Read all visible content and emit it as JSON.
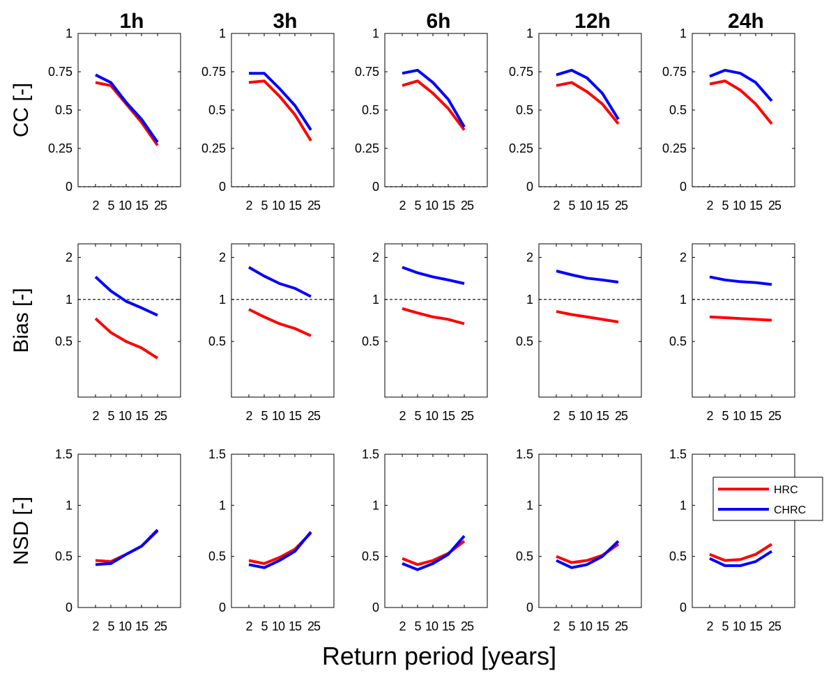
{
  "figure": {
    "xlabel": "Return period [years]",
    "columns": [
      "1h",
      "3h",
      "6h",
      "12h",
      "24h"
    ]
  },
  "legend": {
    "entries": [
      {
        "name": "HRC",
        "color": "#ff0000"
      },
      {
        "name": "CHRC",
        "color": "#0000ff"
      }
    ],
    "placement": "panel NSD 24h, upper right"
  },
  "chart_data": [
    {
      "type": "line",
      "row": "CC",
      "ylabel": "CC [-]",
      "ylim": [
        0,
        1
      ],
      "yticks": [
        0,
        0.25,
        0.5,
        0.75,
        1
      ],
      "ytick_labels": [
        "0",
        "0.25",
        "0.5",
        "0.75",
        "1"
      ],
      "x": [
        2,
        5,
        10,
        15,
        25
      ],
      "xtick_labels": [
        "2",
        "5",
        "10",
        "15",
        "25"
      ],
      "reference_line": 0,
      "panels": [
        {
          "title": "1h",
          "series": [
            {
              "name": "HRC",
              "values": [
                0.68,
                0.66,
                0.54,
                0.42,
                0.27
              ]
            },
            {
              "name": "CHRC",
              "values": [
                0.73,
                0.68,
                0.55,
                0.44,
                0.29
              ]
            }
          ]
        },
        {
          "title": "3h",
          "series": [
            {
              "name": "HRC",
              "values": [
                0.68,
                0.69,
                0.59,
                0.47,
                0.3
              ]
            },
            {
              "name": "CHRC",
              "values": [
                0.74,
                0.74,
                0.64,
                0.53,
                0.37
              ]
            }
          ]
        },
        {
          "title": "6h",
          "series": [
            {
              "name": "HRC",
              "values": [
                0.66,
                0.69,
                0.61,
                0.51,
                0.37
              ]
            },
            {
              "name": "CHRC",
              "values": [
                0.74,
                0.76,
                0.68,
                0.57,
                0.39
              ]
            }
          ]
        },
        {
          "title": "12h",
          "series": [
            {
              "name": "HRC",
              "values": [
                0.66,
                0.68,
                0.62,
                0.54,
                0.41
              ]
            },
            {
              "name": "CHRC",
              "values": [
                0.73,
                0.76,
                0.71,
                0.61,
                0.44
              ]
            }
          ]
        },
        {
          "title": "24h",
          "series": [
            {
              "name": "HRC",
              "values": [
                0.67,
                0.69,
                0.63,
                0.54,
                0.41
              ]
            },
            {
              "name": "CHRC",
              "values": [
                0.72,
                0.76,
                0.74,
                0.68,
                0.56
              ]
            }
          ]
        }
      ]
    },
    {
      "type": "line",
      "row": "Bias",
      "ylabel": "Bias [-]",
      "ylim": [
        0.2,
        2.5
      ],
      "yticks": [
        0.5,
        1,
        2
      ],
      "ytick_labels": [
        "0.5",
        "1",
        "2"
      ],
      "scale": "log",
      "x": [
        2,
        5,
        10,
        15,
        25
      ],
      "xtick_labels": [
        "2",
        "5",
        "10",
        "15",
        "25"
      ],
      "reference_line": 1,
      "panels": [
        {
          "title": "1h",
          "series": [
            {
              "name": "HRC",
              "values": [
                0.73,
                0.58,
                0.5,
                0.45,
                0.38
              ]
            },
            {
              "name": "CHRC",
              "values": [
                1.45,
                1.15,
                0.97,
                0.87,
                0.77
              ]
            }
          ]
        },
        {
          "title": "3h",
          "series": [
            {
              "name": "HRC",
              "values": [
                0.85,
                0.75,
                0.67,
                0.62,
                0.55
              ]
            },
            {
              "name": "CHRC",
              "values": [
                1.7,
                1.47,
                1.3,
                1.2,
                1.05
              ]
            }
          ]
        },
        {
          "title": "6h",
          "series": [
            {
              "name": "HRC",
              "values": [
                0.86,
                0.8,
                0.75,
                0.72,
                0.67
              ]
            },
            {
              "name": "CHRC",
              "values": [
                1.7,
                1.55,
                1.45,
                1.38,
                1.3
              ]
            }
          ]
        },
        {
          "title": "12h",
          "series": [
            {
              "name": "HRC",
              "values": [
                0.82,
                0.78,
                0.75,
                0.72,
                0.69
              ]
            },
            {
              "name": "CHRC",
              "values": [
                1.6,
                1.5,
                1.42,
                1.38,
                1.33
              ]
            }
          ]
        },
        {
          "title": "24h",
          "series": [
            {
              "name": "HRC",
              "values": [
                0.75,
                0.74,
                0.73,
                0.72,
                0.71
              ]
            },
            {
              "name": "CHRC",
              "values": [
                1.45,
                1.38,
                1.34,
                1.32,
                1.28
              ]
            }
          ]
        }
      ]
    },
    {
      "type": "line",
      "row": "NSD",
      "ylabel": "NSD [-]",
      "ylim": [
        0,
        1.5
      ],
      "yticks": [
        0,
        0.5,
        1,
        1.5
      ],
      "ytick_labels": [
        "0",
        "0.5",
        "1",
        "1.5"
      ],
      "x": [
        2,
        5,
        10,
        15,
        25
      ],
      "xtick_labels": [
        "2",
        "5",
        "10",
        "15",
        "25"
      ],
      "reference_line": null,
      "panels": [
        {
          "title": "1h",
          "series": [
            {
              "name": "HRC",
              "values": [
                0.46,
                0.45,
                0.52,
                0.6,
                0.75
              ]
            },
            {
              "name": "CHRC",
              "values": [
                0.42,
                0.43,
                0.52,
                0.6,
                0.76
              ]
            }
          ]
        },
        {
          "title": "3h",
          "series": [
            {
              "name": "HRC",
              "values": [
                0.46,
                0.43,
                0.49,
                0.57,
                0.73
              ]
            },
            {
              "name": "CHRC",
              "values": [
                0.42,
                0.39,
                0.46,
                0.55,
                0.74
              ]
            }
          ]
        },
        {
          "title": "6h",
          "series": [
            {
              "name": "HRC",
              "values": [
                0.48,
                0.42,
                0.46,
                0.53,
                0.65
              ]
            },
            {
              "name": "CHRC",
              "values": [
                0.43,
                0.37,
                0.43,
                0.52,
                0.7
              ]
            }
          ]
        },
        {
          "title": "12h",
          "series": [
            {
              "name": "HRC",
              "values": [
                0.5,
                0.44,
                0.46,
                0.51,
                0.62
              ]
            },
            {
              "name": "CHRC",
              "values": [
                0.46,
                0.39,
                0.42,
                0.5,
                0.65
              ]
            }
          ]
        },
        {
          "title": "24h",
          "series": [
            {
              "name": "HRC",
              "values": [
                0.52,
                0.46,
                0.47,
                0.52,
                0.62
              ]
            },
            {
              "name": "CHRC",
              "values": [
                0.48,
                0.41,
                0.41,
                0.45,
                0.55
              ]
            }
          ]
        }
      ]
    }
  ]
}
